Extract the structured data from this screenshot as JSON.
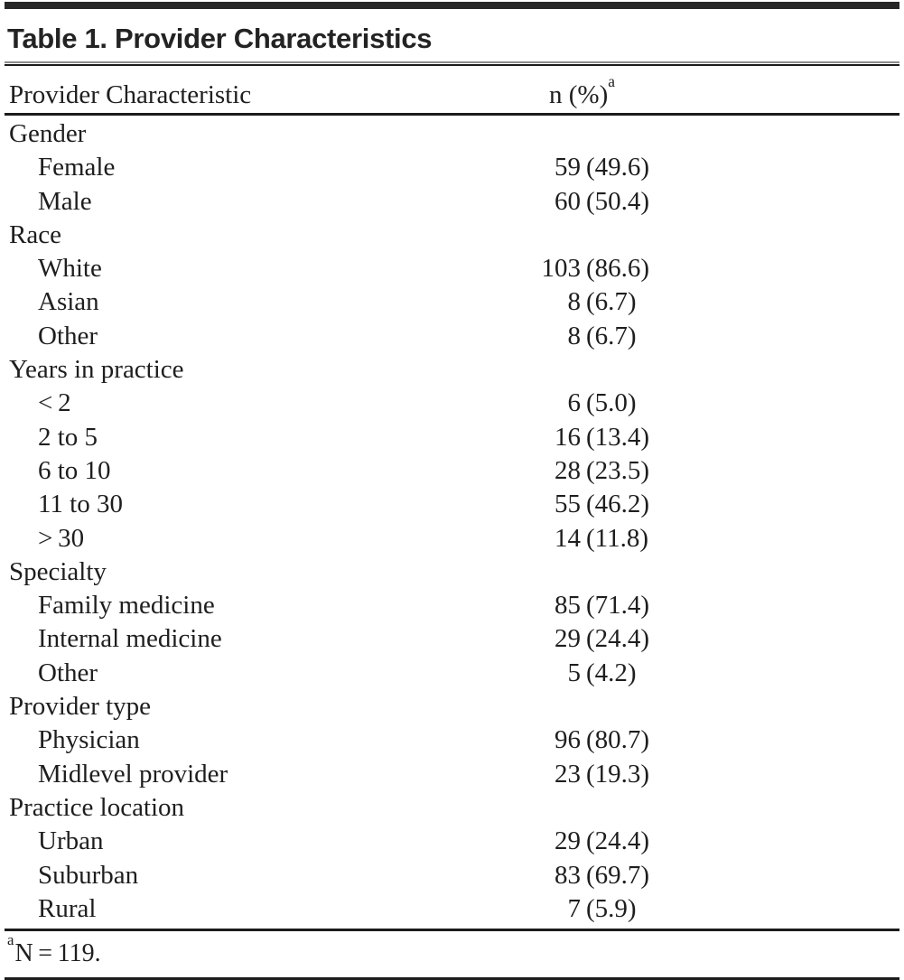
{
  "table": {
    "title": "Table 1. Provider Characteristics",
    "header": {
      "characteristic": "Provider Characteristic",
      "value": "n (%)",
      "footnote_marker": "a"
    },
    "sections": [
      {
        "category": "Gender",
        "rows": [
          {
            "label": "Female",
            "n": "59",
            "pct": "(49.6)"
          },
          {
            "label": "Male",
            "n": "60",
            "pct": "(50.4)"
          }
        ]
      },
      {
        "category": "Race",
        "rows": [
          {
            "label": "White",
            "n": "103",
            "pct": "(86.6)"
          },
          {
            "label": "Asian",
            "n": "8",
            "pct": "(6.7)"
          },
          {
            "label": "Other",
            "n": "8",
            "pct": "(6.7)"
          }
        ]
      },
      {
        "category": "Years in practice",
        "rows": [
          {
            "label": "< 2",
            "n": "6",
            "pct": "(5.0)"
          },
          {
            "label": "2 to 5",
            "n": "16",
            "pct": "(13.4)"
          },
          {
            "label": "6 to 10",
            "n": "28",
            "pct": "(23.5)"
          },
          {
            "label": "11 to 30",
            "n": "55",
            "pct": "(46.2)"
          },
          {
            "label": "> 30",
            "n": "14",
            "pct": "(11.8)"
          }
        ]
      },
      {
        "category": "Specialty",
        "rows": [
          {
            "label": "Family medicine",
            "n": "85",
            "pct": "(71.4)"
          },
          {
            "label": "Internal medicine",
            "n": "29",
            "pct": "(24.4)"
          },
          {
            "label": "Other",
            "n": "5",
            "pct": "(4.2)"
          }
        ]
      },
      {
        "category": "Provider type",
        "rows": [
          {
            "label": "Physician",
            "n": "96",
            "pct": "(80.7)"
          },
          {
            "label": "Midlevel provider",
            "n": "23",
            "pct": "(19.3)"
          }
        ]
      },
      {
        "category": "Practice location",
        "rows": [
          {
            "label": "Urban",
            "n": "29",
            "pct": "(24.4)"
          },
          {
            "label": "Suburban",
            "n": "83",
            "pct": "(69.7)"
          },
          {
            "label": "Rural",
            "n": "7",
            "pct": "(5.9)"
          }
        ]
      }
    ],
    "footnote": {
      "marker": "a",
      "text": "N = 119."
    }
  },
  "colors": {
    "background": "#ffffff",
    "text": "#1e1e1e",
    "rule": "#1c1c1c",
    "top_band": "#272727"
  }
}
